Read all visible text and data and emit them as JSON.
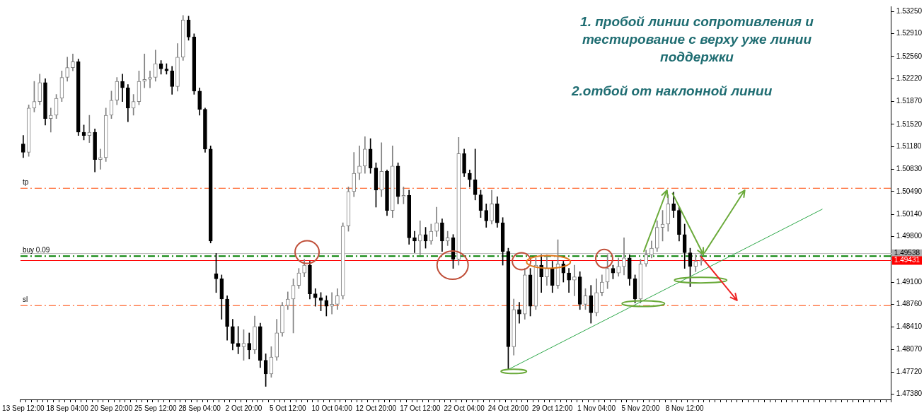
{
  "chart_data": {
    "type": "candlestick",
    "colors": [
      "#000000",
      "#808080",
      "#808080",
      "#808080",
      "#000000",
      "#808080",
      "#808080",
      "#808080",
      "#808080",
      "#808080",
      "#000000",
      "#000000",
      "#808080",
      "#000000",
      "#808080",
      "#808080",
      "#808080",
      "#808080",
      "#000000",
      "#000000",
      "#808080",
      "#808080",
      "#808080",
      "#808080",
      "#808080",
      "#000000",
      "#000000",
      "#000000",
      "#808080",
      "#808080",
      "#000000",
      "#000000",
      "#000000",
      "#000000",
      "#000000",
      "#000000",
      "#000000",
      "#000000",
      "#000000",
      "#000000",
      "#808080",
      "#000000",
      "#808080",
      "#000000",
      "#000000",
      "#808080",
      "#808080",
      "#808080",
      "#808080",
      "#808080",
      "#808080",
      "#808080",
      "#000000",
      "#000000",
      "#000000",
      "#000000",
      "#808080",
      "#808080",
      "#808080",
      "#808080",
      "#808080",
      "#808080",
      "#808080",
      "#000000",
      "#000000",
      "#808080",
      "#000000",
      "#808080",
      "#000000",
      "#808080",
      "#000000",
      "#000000",
      "#808080",
      "#000000",
      "#808080",
      "#808080",
      "#000000",
      "#808080",
      "#000000",
      "#808080",
      "#000000",
      "#000000",
      "#000000",
      "#000000",
      "#000000",
      "#808080",
      "#000000",
      "#000000",
      "#000000",
      "#808080",
      "#000000",
      "#808080",
      "#000000",
      "#808080",
      "#000000",
      "#808080",
      "#000000",
      "#808080",
      "#000000",
      "#000000",
      "#808080",
      "#000000",
      "#808080",
      "#000000",
      "#808080",
      "#808080",
      "#808080",
      "#000000",
      "#808080",
      "#808080",
      "#000000",
      "#000000",
      "#808080",
      "#808080",
      "#808080",
      "#808080",
      "#808080",
      "#808080",
      "#000000",
      "#000000",
      "#000000",
      "#000000",
      "#808080",
      "#808080",
      null,
      null,
      null,
      null,
      null,
      null,
      null,
      null,
      null,
      null,
      null,
      null,
      null,
      null,
      null,
      null,
      null,
      null,
      null,
      null,
      null,
      null,
      null,
      null,
      null,
      null,
      null,
      null,
      null,
      null,
      null,
      null,
      null,
      null
    ],
    "categories": [
      "13 Sep 12:00",
      null,
      null,
      null,
      null,
      null,
      null,
      null,
      "18 Sep 04:00",
      null,
      null,
      null,
      null,
      null,
      null,
      null,
      "20 Sep 20:00",
      null,
      null,
      null,
      null,
      null,
      null,
      null,
      "25 Sep 12:00",
      null,
      null,
      null,
      null,
      null,
      null,
      null,
      "28 Sep 04:00",
      null,
      null,
      null,
      null,
      null,
      null,
      null,
      "2 Oct 20:00",
      null,
      null,
      null,
      null,
      null,
      null,
      null,
      "5 Oct 12:00",
      null,
      null,
      null,
      null,
      null,
      null,
      null,
      "10 Oct 04:00",
      null,
      null,
      null,
      null,
      null,
      null,
      null,
      "12 Oct 20:00",
      null,
      null,
      null,
      null,
      null,
      null,
      null,
      "17 Oct 12:00",
      null,
      null,
      null,
      null,
      null,
      null,
      null,
      "22 Oct 04:00",
      null,
      null,
      null,
      null,
      null,
      null,
      null,
      "24 Oct 20:00",
      null,
      null,
      null,
      null,
      null,
      null,
      null,
      "29 Oct 12:00",
      null,
      null,
      null,
      null,
      null,
      null,
      null,
      "1 Nov 04:00",
      null,
      null,
      null,
      null,
      null,
      null,
      null,
      "5 Nov 20:00",
      null,
      null,
      null,
      null,
      null,
      null,
      null,
      "8 Nov 12:00",
      null,
      null,
      null,
      null,
      null,
      null,
      null,
      null,
      null,
      null,
      null,
      null,
      null,
      null,
      null,
      null,
      null,
      null,
      null,
      null,
      null,
      null,
      null,
      null,
      null,
      null,
      null,
      null,
      null,
      null,
      null,
      null,
      null,
      null,
      null,
      null,
      null
    ],
    "ohlc": [
      [
        1.5122,
        1.5135,
        1.5101,
        1.5109
      ],
      [
        1.5109,
        1.5182,
        1.5103,
        1.5177
      ],
      [
        1.5177,
        1.5218,
        1.5171,
        1.5187
      ],
      [
        1.5187,
        1.5229,
        1.5182,
        1.5216
      ],
      [
        1.5216,
        1.5222,
        1.5151,
        1.5161
      ],
      [
        1.5161,
        1.5177,
        1.514,
        1.5166
      ],
      [
        1.5166,
        1.5198,
        1.5161,
        1.5192
      ],
      [
        1.5192,
        1.5234,
        1.5187,
        1.5224
      ],
      [
        1.5224,
        1.5255,
        1.5218,
        1.5239
      ],
      [
        1.5239,
        1.526,
        1.5234,
        1.5248
      ],
      [
        1.5248,
        1.5252,
        1.5135,
        1.514
      ],
      [
        1.514,
        1.5151,
        1.5128,
        1.5135
      ],
      [
        1.5135,
        1.5166,
        1.5124,
        1.514
      ],
      [
        1.514,
        1.5145,
        1.5079,
        1.5098
      ],
      [
        1.5098,
        1.5114,
        1.5083,
        1.5101
      ],
      [
        1.5101,
        1.5177,
        1.5095,
        1.5166
      ],
      [
        1.5166,
        1.5203,
        1.5161,
        1.5189
      ],
      [
        1.5189,
        1.5224,
        1.5182,
        1.5218
      ],
      [
        1.5218,
        1.5229,
        1.5187,
        1.5208
      ],
      [
        1.5208,
        1.5213,
        1.5156,
        1.5177
      ],
      [
        1.5177,
        1.5198,
        1.5166,
        1.5187
      ],
      [
        1.5187,
        1.5234,
        1.5182,
        1.5218
      ],
      [
        1.5218,
        1.526,
        1.5208,
        1.5221
      ],
      [
        1.5221,
        1.5234,
        1.5208,
        1.5224
      ],
      [
        1.5224,
        1.5266,
        1.5218,
        1.5245
      ],
      [
        1.5245,
        1.525,
        1.5229,
        1.5237
      ],
      [
        1.5237,
        1.5245,
        1.5229,
        1.5234
      ],
      [
        1.5234,
        1.5241,
        1.5198,
        1.521
      ],
      [
        1.521,
        1.5276,
        1.5203,
        1.5255
      ],
      [
        1.5255,
        1.5319,
        1.525,
        1.5312
      ],
      [
        1.5312,
        1.5318,
        1.5281,
        1.5286
      ],
      [
        1.5286,
        1.5291,
        1.5198,
        1.5203
      ],
      [
        1.5203,
        1.5208,
        1.5166,
        1.5175
      ],
      [
        1.5175,
        1.5177,
        1.5109,
        1.5114
      ],
      [
        1.5114,
        1.5119,
        1.497,
        1.4973
      ],
      [
        1.4923,
        1.4954,
        1.4894,
        1.4915
      ],
      [
        1.4915,
        1.4921,
        1.4853,
        1.4884
      ],
      [
        1.4884,
        1.4889,
        1.4821,
        1.4842
      ],
      [
        1.4842,
        1.4853,
        1.4806,
        1.4816
      ],
      [
        1.4816,
        1.4842,
        1.48,
        1.4811
      ],
      [
        1.4811,
        1.4837,
        1.479,
        1.4816
      ],
      [
        1.4816,
        1.4832,
        1.4792,
        1.4806
      ],
      [
        1.4806,
        1.4858,
        1.48,
        1.4842
      ],
      [
        1.4842,
        1.4847,
        1.4779,
        1.479
      ],
      [
        1.479,
        1.48,
        1.475,
        1.4769
      ],
      [
        1.4769,
        1.4811,
        1.4764,
        1.4795
      ],
      [
        1.4795,
        1.4853,
        1.479,
        1.4832
      ],
      [
        1.4832,
        1.4879,
        1.4827,
        1.4874
      ],
      [
        1.4874,
        1.4895,
        1.4868,
        1.4884
      ],
      [
        1.4884,
        1.4915,
        1.4832,
        1.4905
      ],
      [
        1.4905,
        1.4931,
        1.49,
        1.4924
      ],
      [
        1.4924,
        1.4945,
        1.4918,
        1.4936
      ],
      [
        1.4936,
        1.4942,
        1.4884,
        1.4892
      ],
      [
        1.4892,
        1.49,
        1.4873,
        1.4886
      ],
      [
        1.4886,
        1.4894,
        1.4866,
        1.4882
      ],
      [
        1.4882,
        1.4889,
        1.4858,
        1.4873
      ],
      [
        1.4873,
        1.4894,
        1.4861,
        1.4876
      ],
      [
        1.4876,
        1.49,
        1.4868,
        1.4889
      ],
      [
        1.4889,
        1.5001,
        1.4884,
        1.4996
      ],
      [
        1.4996,
        1.5056,
        1.4988,
        1.5049
      ],
      [
        1.5049,
        1.5109,
        1.5041,
        1.5077
      ],
      [
        1.5077,
        1.5119,
        1.5067,
        1.5088
      ],
      [
        1.5088,
        1.5133,
        1.5077,
        1.5114
      ],
      [
        1.5114,
        1.513,
        1.5077,
        1.5085
      ],
      [
        1.5085,
        1.5093,
        1.5025,
        1.5051
      ],
      [
        1.5051,
        1.5124,
        1.5041,
        1.508
      ],
      [
        1.508,
        1.5082,
        1.5012,
        1.502
      ],
      [
        1.502,
        1.5119,
        1.5009,
        1.5088
      ],
      [
        1.5088,
        1.5093,
        1.503,
        1.5041
      ],
      [
        1.5041,
        1.5056,
        1.503,
        1.5043
      ],
      [
        1.5043,
        1.5051,
        1.4968,
        1.4978
      ],
      [
        1.4978,
        1.4988,
        1.4955,
        1.4973
      ],
      [
        1.4973,
        1.5004,
        1.4952,
        1.4983
      ],
      [
        1.4983,
        1.4994,
        1.4962,
        1.4973
      ],
      [
        1.4973,
        1.4999,
        1.4968,
        1.4988
      ],
      [
        1.4988,
        1.5025,
        1.498,
        1.5001
      ],
      [
        1.5001,
        1.5007,
        1.4957,
        1.4973
      ],
      [
        1.4973,
        1.4988,
        1.4966,
        1.4978
      ],
      [
        1.4978,
        1.4983,
        1.4931,
        1.4945
      ],
      [
        1.4945,
        1.5132,
        1.4936,
        1.5107
      ],
      [
        1.5107,
        1.5114,
        1.5072,
        1.5077
      ],
      [
        1.5077,
        1.5082,
        1.5056,
        1.5067
      ],
      [
        1.5067,
        1.5114,
        1.5036,
        1.5044
      ],
      [
        1.5044,
        1.5051,
        1.5009,
        1.502
      ],
      [
        1.502,
        1.503,
        1.4994,
        1.5004
      ],
      [
        1.5004,
        1.5051,
        1.4999,
        1.503
      ],
      [
        1.503,
        1.5041,
        1.4994,
        1.5001
      ],
      [
        1.5001,
        1.5009,
        1.4936,
        1.4957
      ],
      [
        1.4957,
        1.4962,
        1.4776,
        1.4811
      ],
      [
        1.4811,
        1.4884,
        1.4798,
        1.4868
      ],
      [
        1.4868,
        1.4879,
        1.4847,
        1.4861
      ],
      [
        1.4861,
        1.4931,
        1.4853,
        1.4921
      ],
      [
        1.4921,
        1.4931,
        1.4858,
        1.4873
      ],
      [
        1.4873,
        1.4947,
        1.4868,
        1.4936
      ],
      [
        1.4936,
        1.4952,
        1.4894,
        1.4918
      ],
      [
        1.4918,
        1.4952,
        1.4905,
        1.4931
      ],
      [
        1.4931,
        1.4942,
        1.4894,
        1.4905
      ],
      [
        1.4905,
        1.4975,
        1.49,
        1.4938
      ],
      [
        1.4938,
        1.4942,
        1.491,
        1.4924
      ],
      [
        1.4924,
        1.4931,
        1.4894,
        1.4913
      ],
      [
        1.4913,
        1.4936,
        1.4889,
        1.4918
      ],
      [
        1.4918,
        1.4926,
        1.4868,
        1.4876
      ],
      [
        1.4876,
        1.49,
        1.4868,
        1.4889
      ],
      [
        1.4889,
        1.4905,
        1.4847,
        1.4863
      ],
      [
        1.4863,
        1.4915,
        1.4858,
        1.4894
      ],
      [
        1.4894,
        1.4921,
        1.4889,
        1.491
      ],
      [
        1.491,
        1.4952,
        1.49,
        1.4931
      ],
      [
        1.4931,
        1.4936,
        1.4915,
        1.4924
      ],
      [
        1.4924,
        1.4947,
        1.4919,
        1.4934
      ],
      [
        1.4934,
        1.4978,
        1.4921,
        1.4947
      ],
      [
        1.4947,
        1.4952,
        1.4905,
        1.4915
      ],
      [
        1.4915,
        1.4921,
        1.4878,
        1.4884
      ],
      [
        1.4884,
        1.4945,
        1.4878,
        1.4938
      ],
      [
        1.4938,
        1.4959,
        1.4934,
        1.4952
      ],
      [
        1.4952,
        1.4973,
        1.4947,
        1.4962
      ],
      [
        1.4962,
        1.5004,
        1.4957,
        1.4994
      ],
      [
        1.4994,
        1.502,
        1.4973,
        1.4999
      ],
      [
        1.4999,
        1.5044,
        1.4988,
        1.503
      ],
      [
        1.503,
        1.5048,
        1.5009,
        1.502
      ],
      [
        1.502,
        1.5025,
        1.4973,
        1.4983
      ],
      [
        1.4983,
        1.4999,
        1.4931,
        1.4955
      ],
      [
        1.4955,
        1.4962,
        1.4903,
        1.4934
      ],
      [
        1.4934,
        1.4952,
        1.4926,
        1.4942
      ],
      [
        1.4942,
        1.4957,
        1.4936,
        1.4943
      ],
      null,
      null,
      null,
      null,
      null,
      null,
      null,
      null,
      null,
      null,
      null,
      null,
      null,
      null,
      null,
      null,
      null,
      null,
      null,
      null,
      null,
      null,
      null,
      null,
      null,
      null,
      null,
      null,
      null,
      null,
      null,
      null,
      null,
      null
    ],
    "series": [
      {
        "type": "line",
        "color": "#2ea84a",
        "values": [
          null,
          null,
          null,
          null,
          null,
          null,
          null,
          null,
          null,
          null,
          null,
          null,
          null,
          null,
          null,
          null,
          null,
          null,
          null,
          null,
          null,
          null,
          null,
          null,
          null,
          null,
          null,
          null,
          null,
          null,
          null,
          null,
          null,
          null,
          null,
          null,
          null,
          null,
          null,
          null,
          null,
          null,
          null,
          null,
          null,
          null,
          null,
          null,
          null,
          null,
          null,
          null,
          null,
          null,
          null,
          null,
          null,
          null,
          null,
          null,
          null,
          null,
          null,
          null,
          null,
          null,
          null,
          null,
          null,
          null,
          null,
          null,
          null,
          null,
          null,
          null,
          null,
          null,
          null,
          null,
          null,
          null,
          null,
          null,
          null,
          null,
          null,
          null,
          1.4776,
          null,
          null,
          null,
          null,
          null,
          null,
          null,
          null,
          null,
          null,
          null,
          null,
          null,
          null,
          null,
          null,
          null,
          null,
          null,
          null,
          null,
          null,
          null,
          null,
          null,
          null,
          null,
          null,
          null,
          null,
          null,
          null,
          null,
          null,
          null,
          null,
          null,
          null,
          null,
          null,
          null,
          null,
          null,
          null,
          null,
          null,
          null,
          null,
          null,
          null,
          null,
          null,
          null,
          null,
          null,
          null,
          1.5022,
          null,
          null,
          null,
          null,
          null,
          null,
          null,
          null,
          null,
          null,
          null,
          null
        ]
      }
    ],
    "ylim": [
      1.473,
      1.5333
    ],
    "yticks": [
      {
        "value": 1.5325,
        "label": "1.53250"
      },
      {
        "value": 1.5291,
        "label": "1.52910"
      },
      {
        "value": 1.5256,
        "label": "1.52560"
      },
      {
        "value": 1.5222,
        "label": "1.52220"
      },
      {
        "value": 1.5187,
        "label": "1.51870"
      },
      {
        "value": 1.5152,
        "label": "1.51520"
      },
      {
        "value": 1.5118,
        "label": "1.51180"
      },
      {
        "value": 1.5083,
        "label": "1.50830"
      },
      {
        "value": 1.5049,
        "label": "1.50490"
      },
      {
        "value": 1.5014,
        "label": "1.50140"
      },
      {
        "value": 1.498,
        "label": "1.49800"
      },
      {
        "value": 1.491,
        "label": "1.49100"
      },
      {
        "value": 1.4876,
        "label": "1.48760"
      },
      {
        "value": 1.4841,
        "label": "1.48410"
      },
      {
        "value": 1.4807,
        "label": "1.48070"
      },
      {
        "value": 1.4772,
        "label": "1.47720"
      },
      {
        "value": 1.4738,
        "label": "1.47380"
      }
    ],
    "ref_lines": [
      {
        "axis": "y",
        "value": 1.5054,
        "label": "tp",
        "color": "#ff4500",
        "line_style": "dashed"
      },
      {
        "axis": "y",
        "value": 1.495,
        "label": "buy 0.09",
        "color": "#008000",
        "line_style": "dashed"
      },
      {
        "axis": "y",
        "value": 1.4874,
        "label": "sl",
        "color": "#ff4500",
        "line_style": "dashed"
      },
      {
        "axis": "y",
        "value": 1.49538,
        "label": "1.49538",
        "color": "#b0b0b0",
        "line_style": "solid"
      },
      {
        "axis": "y",
        "value": 1.49431,
        "label": "1.49431",
        "color": "#ff0000",
        "line_style": "solid"
      }
    ],
    "annotations": [
      "1. пробой линии сопротивления и тестирование с верху уже линии поддержки",
      "2.отбой от наклонной линии"
    ]
  }
}
